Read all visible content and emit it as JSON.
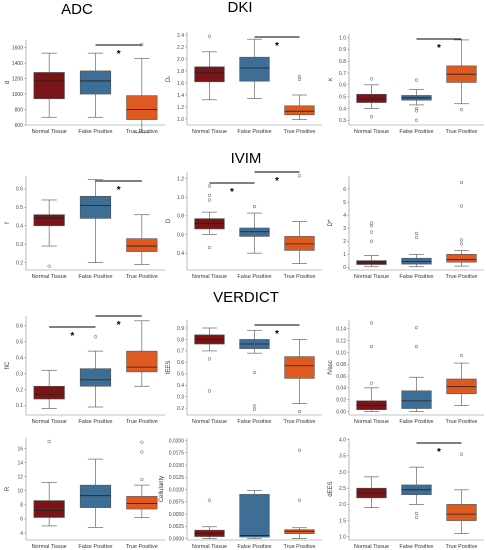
{
  "sections": [
    "ADC",
    "DKI",
    "IVIM",
    "VERDICT"
  ],
  "colors": {
    "normal": "#7b1416",
    "false_positive": "#3e6d96",
    "true_positive": "#de5a20"
  },
  "chart_data": [
    {
      "type": "box",
      "id": "d",
      "ylabel": "d",
      "ylim": [
        600,
        1700
      ],
      "yticks": [
        "600",
        "800",
        "1000",
        "1200",
        "1400",
        "1600"
      ],
      "categories": [
        "Normal Tissue",
        "False Positive",
        "True Positive"
      ],
      "boxes": [
        {
          "whislo": 700,
          "q1": 940,
          "med": 1170,
          "q3": 1280,
          "whishi": 1530,
          "fliers": []
        },
        {
          "whislo": 700,
          "q1": 1000,
          "med": 1170,
          "q3": 1300,
          "whishi": 1530,
          "fliers": []
        },
        {
          "whislo": 500,
          "q1": 670,
          "med": 800,
          "q3": 980,
          "whishi": 1460,
          "fliers": [
            1640
          ]
        }
      ],
      "significance": [
        {
          "from": 1,
          "to": 2,
          "label": "*"
        }
      ]
    },
    {
      "type": "box",
      "id": "dk",
      "ylabel": "Dₖ",
      "ylim": [
        0.9,
        2.45
      ],
      "yticks": [
        "1.0",
        "1.2",
        "1.4",
        "1.6",
        "1.8",
        "2.0",
        "2.2",
        "2.4"
      ],
      "categories": [
        "Normal Tissue",
        "False Positive",
        "True Positive"
      ],
      "boxes": [
        {
          "whislo": 1.32,
          "q1": 1.62,
          "med": 1.77,
          "q3": 1.87,
          "whishi": 2.12,
          "fliers": [
            2.38
          ]
        },
        {
          "whislo": 1.34,
          "q1": 1.63,
          "med": 1.85,
          "q3": 2.03,
          "whishi": 2.33,
          "fliers": []
        },
        {
          "whislo": 0.99,
          "q1": 1.07,
          "med": 1.13,
          "q3": 1.22,
          "whishi": 1.4,
          "fliers": [
            1.66,
            1.71
          ]
        }
      ],
      "significance": [
        {
          "from": 1,
          "to": 2,
          "label": "*"
        }
      ]
    },
    {
      "type": "box",
      "id": "k",
      "ylabel": "κ",
      "ylim": [
        0.26,
        1.03
      ],
      "yticks": [
        "0.3",
        "0.4",
        "0.5",
        "0.6",
        "0.7",
        "0.8",
        "0.9",
        "1.0"
      ],
      "categories": [
        "Normal Tissue",
        "False Positive",
        "True Positive"
      ],
      "boxes": [
        {
          "whislo": 0.4,
          "q1": 0.45,
          "med": 0.48,
          "q3": 0.52,
          "whishi": 0.6,
          "fliers": [
            0.65,
            0.33
          ]
        },
        {
          "whislo": 0.43,
          "q1": 0.47,
          "med": 0.49,
          "q3": 0.51,
          "whishi": 0.56,
          "fliers": [
            0.64,
            0.4,
            0.38,
            0.3
          ]
        },
        {
          "whislo": 0.44,
          "q1": 0.62,
          "med": 0.69,
          "q3": 0.76,
          "whishi": 0.98,
          "fliers": [
            0.39
          ]
        }
      ],
      "significance": [
        {
          "from": 1,
          "to": 2,
          "label": "*"
        }
      ]
    },
    {
      "type": "box",
      "id": "f",
      "ylabel": "f",
      "ylim": [
        0.16,
        0.67
      ],
      "yticks": [
        "0.2",
        "0.3",
        "0.4",
        "0.5",
        "0.6"
      ],
      "categories": [
        "Normal Tissue",
        "False Positive",
        "True Positive"
      ],
      "boxes": [
        {
          "whislo": 0.29,
          "q1": 0.4,
          "med": 0.44,
          "q3": 0.46,
          "whishi": 0.54,
          "fliers": [
            0.18
          ]
        },
        {
          "whislo": 0.2,
          "q1": 0.44,
          "med": 0.51,
          "q3": 0.56,
          "whishi": 0.65,
          "fliers": []
        },
        {
          "whislo": 0.19,
          "q1": 0.26,
          "med": 0.29,
          "q3": 0.33,
          "whishi": 0.46,
          "fliers": []
        }
      ],
      "significance": [
        {
          "from": 1,
          "to": 2,
          "label": "*"
        }
      ]
    },
    {
      "type": "box",
      "id": "D",
      "ylabel": "D",
      "ylim": [
        0.22,
        1.27
      ],
      "yticks": [
        "0.4",
        "0.6",
        "0.8",
        "1.0",
        "1.2"
      ],
      "categories": [
        "Normal Tissue",
        "False Positive",
        "True Positive"
      ],
      "boxes": [
        {
          "whislo": 0.6,
          "q1": 0.66,
          "med": 0.72,
          "q3": 0.77,
          "whishi": 0.84,
          "fliers": [
            0.97,
            1.02,
            1.12,
            0.46
          ]
        },
        {
          "whislo": 0.4,
          "q1": 0.58,
          "med": 0.63,
          "q3": 0.67,
          "whishi": 0.83,
          "fliers": [
            0.9
          ]
        },
        {
          "whislo": 0.29,
          "q1": 0.43,
          "med": 0.5,
          "q3": 0.58,
          "whishi": 0.74,
          "fliers": [
            1.23
          ]
        }
      ],
      "significance": [
        {
          "from": 0,
          "to": 1,
          "label": "*"
        },
        {
          "from": 1,
          "to": 2,
          "label": "*"
        }
      ]
    },
    {
      "type": "box",
      "id": "Dstar",
      "ylabel": "D*",
      "ylim": [
        -0.2,
        7.0
      ],
      "yticks": [
        "0",
        "1",
        "2",
        "3",
        "4",
        "5",
        "6"
      ],
      "categories": [
        "Normal Tissue",
        "False Positive",
        "True Positive"
      ],
      "boxes": [
        {
          "whislo": 0.05,
          "q1": 0.22,
          "med": 0.35,
          "q3": 0.52,
          "whishi": 0.9,
          "fliers": [
            2.0,
            2.7,
            3.2,
            3.4
          ]
        },
        {
          "whislo": 0.05,
          "q1": 0.25,
          "med": 0.45,
          "q3": 0.7,
          "whishi": 1.0,
          "fliers": [
            2.3,
            2.6
          ]
        },
        {
          "whislo": 0.1,
          "q1": 0.4,
          "med": 0.6,
          "q3": 1.0,
          "whishi": 1.3,
          "fliers": [
            1.8,
            2.1,
            4.7,
            6.5
          ]
        }
      ],
      "significance": []
    },
    {
      "type": "box",
      "id": "fic",
      "ylabel": "fIC",
      "ylim": [
        0.04,
        0.66
      ],
      "yticks": [
        "0.1",
        "0.2",
        "0.3",
        "0.4",
        "0.5",
        "0.6"
      ],
      "categories": [
        "Normal Tissue",
        "False Positive",
        "True Positive"
      ],
      "boxes": [
        {
          "whislo": 0.08,
          "q1": 0.14,
          "med": 0.17,
          "q3": 0.22,
          "whishi": 0.32,
          "fliers": []
        },
        {
          "whislo": 0.09,
          "q1": 0.22,
          "med": 0.26,
          "q3": 0.33,
          "whishi": 0.44,
          "fliers": [
            0.53
          ]
        },
        {
          "whislo": 0.22,
          "q1": 0.31,
          "med": 0.34,
          "q3": 0.44,
          "whishi": 0.63,
          "fliers": []
        }
      ],
      "significance": [
        {
          "from": 0,
          "to": 1,
          "label": "*"
        },
        {
          "from": 1,
          "to": 2,
          "label": "*"
        }
      ]
    },
    {
      "type": "box",
      "id": "fees",
      "ylabel": "fEES",
      "ylim": [
        0.14,
        0.97
      ],
      "yticks": [
        "0.2",
        "0.3",
        "0.4",
        "0.5",
        "0.6",
        "0.7",
        "0.8",
        "0.9"
      ],
      "categories": [
        "Normal Tissue",
        "False Positive",
        "True Positive"
      ],
      "boxes": [
        {
          "whislo": 0.7,
          "q1": 0.76,
          "med": 0.8,
          "q3": 0.84,
          "whishi": 0.9,
          "fliers": [
            0.63,
            0.35
          ]
        },
        {
          "whislo": 0.68,
          "q1": 0.72,
          "med": 0.76,
          "q3": 0.8,
          "whishi": 0.88,
          "fliers": [
            0.51,
            0.22,
            0.19
          ]
        },
        {
          "whislo": 0.24,
          "q1": 0.46,
          "med": 0.57,
          "q3": 0.65,
          "whishi": 0.8,
          "fliers": [
            0.17
          ]
        }
      ],
      "significance": [
        {
          "from": 1,
          "to": 2,
          "label": "*"
        }
      ]
    },
    {
      "type": "box",
      "id": "fvasc",
      "ylabel": "fVasc",
      "ylim": [
        -0.006,
        0.155
      ],
      "yticks": [
        "0.00",
        "0.02",
        "0.04",
        "0.06",
        "0.08",
        "0.10",
        "0.12",
        "0.14"
      ],
      "categories": [
        "Normal Tissue",
        "False Positive",
        "True Positive"
      ],
      "boxes": [
        {
          "whislo": 0.0,
          "q1": 0.003,
          "med": 0.01,
          "q3": 0.018,
          "whishi": 0.04,
          "fliers": [
            0.048,
            0.11,
            0.15
          ]
        },
        {
          "whislo": 0.0,
          "q1": 0.005,
          "med": 0.018,
          "q3": 0.035,
          "whishi": 0.058,
          "fliers": [
            0.11,
            0.142
          ]
        },
        {
          "whislo": 0.01,
          "q1": 0.03,
          "med": 0.042,
          "q3": 0.055,
          "whishi": 0.082,
          "fliers": [
            0.095
          ]
        }
      ],
      "significance": []
    },
    {
      "type": "box",
      "id": "R",
      "ylabel": "R",
      "ylim": [
        3.0,
        17.5
      ],
      "yticks": [
        "4",
        "6",
        "8",
        "10",
        "12",
        "14",
        "16"
      ],
      "categories": [
        "Normal Tissue",
        "False Positive",
        "True Positive"
      ],
      "boxes": [
        {
          "whislo": 5.0,
          "q1": 6.2,
          "med": 7.2,
          "q3": 8.6,
          "whishi": 11.2,
          "fliers": [
            17.0
          ]
        },
        {
          "whislo": 4.8,
          "q1": 7.6,
          "med": 9.3,
          "q3": 10.8,
          "whishi": 14.5,
          "fliers": []
        },
        {
          "whislo": 6.2,
          "q1": 7.4,
          "med": 8.2,
          "q3": 9.2,
          "whishi": 10.8,
          "fliers": [
            11.6,
            15.5,
            16.9
          ]
        }
      ],
      "significance": []
    },
    {
      "type": "box",
      "id": "cell",
      "ylabel": "Cellularity",
      "ylim": [
        -0.0003,
        0.0205
      ],
      "yticks": [
        "0.0000",
        "0.0025",
        "0.0050",
        "0.0075",
        "0.0100",
        "0.0125",
        "0.0150",
        "0.0175",
        "0.0200"
      ],
      "categories": [
        "Normal Tissue",
        "False Positive",
        "True Positive"
      ],
      "boxes": [
        {
          "whislo": 0.0,
          "q1": 0.0004,
          "med": 0.001,
          "q3": 0.0017,
          "whishi": 0.0024,
          "fliers": [
            0.0078
          ]
        },
        {
          "whislo": 0.0,
          "q1": 0.0003,
          "med": 0.0006,
          "q3": 0.009,
          "whishi": 0.0098,
          "fliers": []
        },
        {
          "whislo": 0.0,
          "q1": 0.001,
          "med": 0.0015,
          "q3": 0.0018,
          "whishi": 0.0022,
          "fliers": [
            0.0078,
            0.018
          ]
        }
      ],
      "significance": []
    },
    {
      "type": "box",
      "id": "dees",
      "ylabel": "dEES",
      "ylim": [
        0.9,
        4.05
      ],
      "yticks": [
        "1.0",
        "1.5",
        "2.0",
        "2.5",
        "3.0",
        "3.5",
        "4.0"
      ],
      "categories": [
        "Normal Tissue",
        "False Positive",
        "True Positive"
      ],
      "boxes": [
        {
          "whislo": 1.9,
          "q1": 2.2,
          "med": 2.35,
          "q3": 2.5,
          "whishi": 2.85,
          "fliers": []
        },
        {
          "whislo": 2.0,
          "q1": 2.3,
          "med": 2.45,
          "q3": 2.6,
          "whishi": 3.15,
          "fliers": [
            1.72,
            1.6
          ]
        },
        {
          "whislo": 1.1,
          "q1": 1.5,
          "med": 1.7,
          "q3": 2.0,
          "whishi": 2.45,
          "fliers": [
            3.55
          ]
        }
      ],
      "significance": [
        {
          "from": 1,
          "to": 2,
          "label": "*"
        }
      ]
    }
  ]
}
